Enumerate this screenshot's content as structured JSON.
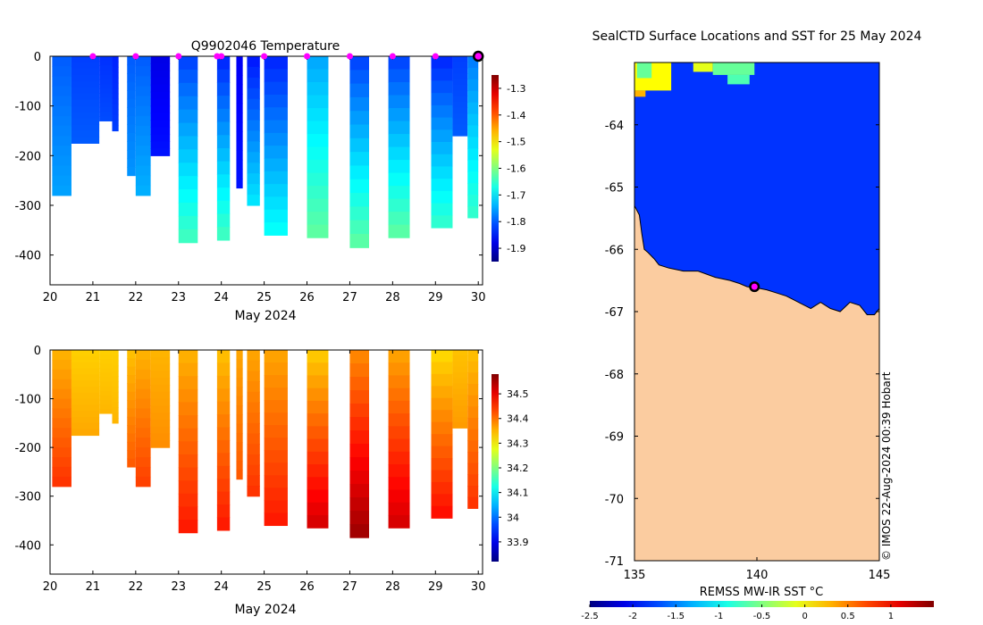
{
  "chart_data": [
    {
      "type": "heatmap",
      "id": "temperature",
      "title": "Q9902046  Temperature",
      "xlabel": "May 2024",
      "ylabel": "",
      "xlim": [
        20,
        30.1
      ],
      "ylim": [
        -460,
        0
      ],
      "x_ticks": [
        20,
        21,
        22,
        23,
        24,
        25,
        26,
        27,
        28,
        29,
        30
      ],
      "y_ticks": [
        0,
        -100,
        -200,
        -300,
        -400
      ],
      "colorbar": {
        "ticks": [
          -1.3,
          -1.4,
          -1.5,
          -1.6,
          -1.7,
          -1.8,
          -1.9
        ],
        "range": [
          -1.95,
          -1.25
        ]
      },
      "surface_markers_x": [
        21,
        22,
        23,
        23.9,
        24,
        25,
        26,
        27,
        28,
        29
      ],
      "latest_profile_x": 30,
      "profiles": [
        {
          "x0": 20.05,
          "x1": 20.5,
          "depth": 280,
          "top": -1.8,
          "bottom": -1.75
        },
        {
          "x0": 20.5,
          "x1": 21.15,
          "depth": 175,
          "top": -1.82,
          "bottom": -1.8
        },
        {
          "x0": 21.15,
          "x1": 21.45,
          "depth": 130,
          "top": -1.83,
          "bottom": -1.81
        },
        {
          "x0": 21.45,
          "x1": 21.6,
          "depth": 150,
          "top": -1.84,
          "bottom": -1.82
        },
        {
          "x0": 21.8,
          "x1": 22.0,
          "depth": 240,
          "top": -1.8,
          "bottom": -1.76
        },
        {
          "x0": 22.0,
          "x1": 22.35,
          "depth": 280,
          "top": -1.8,
          "bottom": -1.74
        },
        {
          "x0": 22.35,
          "x1": 22.8,
          "depth": 200,
          "top": -1.88,
          "bottom": -1.85
        },
        {
          "x0": 23.0,
          "x1": 23.45,
          "depth": 375,
          "top": -1.82,
          "bottom": -1.64
        },
        {
          "x0": 23.9,
          "x1": 24.2,
          "depth": 370,
          "top": -1.84,
          "bottom": -1.64
        },
        {
          "x0": 24.35,
          "x1": 24.5,
          "depth": 265,
          "top": -1.87,
          "bottom": -1.85
        },
        {
          "x0": 24.6,
          "x1": 24.9,
          "depth": 300,
          "top": -1.85,
          "bottom": -1.7
        },
        {
          "x0": 25.0,
          "x1": 25.55,
          "depth": 360,
          "top": -1.84,
          "bottom": -1.68
        },
        {
          "x0": 26.0,
          "x1": 26.5,
          "depth": 365,
          "top": -1.75,
          "bottom": -1.62
        },
        {
          "x0": 27.0,
          "x1": 27.45,
          "depth": 385,
          "top": -1.82,
          "bottom": -1.62
        },
        {
          "x0": 27.9,
          "x1": 28.4,
          "depth": 365,
          "top": -1.82,
          "bottom": -1.62
        },
        {
          "x0": 28.9,
          "x1": 29.4,
          "depth": 345,
          "top": -1.84,
          "bottom": -1.65
        },
        {
          "x0": 29.4,
          "x1": 29.75,
          "depth": 160,
          "top": -1.82,
          "bottom": -1.8
        },
        {
          "x0": 29.75,
          "x1": 30.0,
          "depth": 325,
          "top": -1.78,
          "bottom": -1.65
        }
      ]
    },
    {
      "type": "heatmap",
      "id": "salinity",
      "title": "",
      "xlabel": "May 2024",
      "ylabel": "",
      "xlim": [
        20,
        30.1
      ],
      "ylim": [
        -460,
        0
      ],
      "x_ticks": [
        20,
        21,
        22,
        23,
        24,
        25,
        26,
        27,
        28,
        29,
        30
      ],
      "y_ticks": [
        0,
        -100,
        -200,
        -300,
        -400
      ],
      "colorbar": {
        "ticks": [
          34.5,
          34.4,
          34.3,
          34.2,
          34.1,
          34,
          33.9
        ],
        "range": [
          33.82,
          34.58
        ]
      },
      "profiles": [
        {
          "x0": 20.05,
          "x1": 20.5,
          "depth": 280,
          "top": 34.35,
          "bottom": 34.45
        },
        {
          "x0": 20.5,
          "x1": 21.15,
          "depth": 175,
          "top": 34.33,
          "bottom": 34.36
        },
        {
          "x0": 21.15,
          "x1": 21.45,
          "depth": 130,
          "top": 34.33,
          "bottom": 34.35
        },
        {
          "x0": 21.45,
          "x1": 21.6,
          "depth": 150,
          "top": 34.33,
          "bottom": 34.35
        },
        {
          "x0": 21.8,
          "x1": 22.0,
          "depth": 240,
          "top": 34.34,
          "bottom": 34.42
        },
        {
          "x0": 22.0,
          "x1": 22.35,
          "depth": 280,
          "top": 34.35,
          "bottom": 34.44
        },
        {
          "x0": 22.35,
          "x1": 22.8,
          "depth": 200,
          "top": 34.35,
          "bottom": 34.38
        },
        {
          "x0": 23.0,
          "x1": 23.45,
          "depth": 375,
          "top": 34.35,
          "bottom": 34.47
        },
        {
          "x0": 23.9,
          "x1": 24.2,
          "depth": 370,
          "top": 34.34,
          "bottom": 34.47
        },
        {
          "x0": 24.35,
          "x1": 24.5,
          "depth": 265,
          "top": 34.36,
          "bottom": 34.42
        },
        {
          "x0": 24.6,
          "x1": 24.9,
          "depth": 300,
          "top": 34.36,
          "bottom": 34.45
        },
        {
          "x0": 25.0,
          "x1": 25.55,
          "depth": 360,
          "top": 34.36,
          "bottom": 34.47
        },
        {
          "x0": 26.0,
          "x1": 26.5,
          "depth": 365,
          "top": 34.33,
          "bottom": 34.52
        },
        {
          "x0": 27.0,
          "x1": 27.45,
          "depth": 385,
          "top": 34.38,
          "bottom": 34.56
        },
        {
          "x0": 27.9,
          "x1": 28.4,
          "depth": 365,
          "top": 34.36,
          "bottom": 34.52
        },
        {
          "x0": 28.9,
          "x1": 29.4,
          "depth": 345,
          "top": 34.32,
          "bottom": 34.48
        },
        {
          "x0": 29.4,
          "x1": 29.75,
          "depth": 160,
          "top": 34.34,
          "bottom": 34.37
        },
        {
          "x0": 29.75,
          "x1": 30.0,
          "depth": 325,
          "top": 34.34,
          "bottom": 34.45
        }
      ]
    },
    {
      "type": "heatmap",
      "id": "sst-map",
      "title": "SealCTD Surface Locations and SST for 25 May 2024",
      "xlim": [
        135,
        145
      ],
      "ylim": [
        -71,
        -63
      ],
      "x_ticks": [
        135,
        140,
        145
      ],
      "y_ticks": [
        -64,
        -65,
        -66,
        -67,
        -68,
        -69,
        -70,
        -71
      ],
      "colorbar": {
        "label": "REMSS MW-IR SST °C",
        "ticks": [
          -2.5,
          -2,
          -1.5,
          -1,
          -0.5,
          0,
          0.5,
          1
        ],
        "tick_labels": [
          "-2.5",
          "-2",
          "-1.5",
          "-1",
          "-0.5",
          "0",
          "0.5",
          "1"
        ],
        "range": [
          -2.5,
          1.5
        ]
      },
      "credit": "© IMOS 22-Aug-2024 00:39 Hobart",
      "ocean_sst": -1.8,
      "warm_patches": [
        {
          "lon0": 135.0,
          "lon1": 136.5,
          "lat0": -63.45,
          "lat1": -63.0,
          "sst": 0.0
        },
        {
          "lon0": 135.0,
          "lon1": 135.45,
          "lat0": -63.55,
          "lat1": -63.45,
          "sst": 0.3
        },
        {
          "lon0": 135.1,
          "lon1": 135.7,
          "lat0": -63.25,
          "lat1": -63.0,
          "sst": -0.6
        },
        {
          "lon0": 137.4,
          "lon1": 138.2,
          "lat0": -63.15,
          "lat1": -63.0,
          "sst": -0.1
        },
        {
          "lon0": 138.2,
          "lon1": 139.9,
          "lat0": -63.2,
          "lat1": -63.0,
          "sst": -0.6
        },
        {
          "lon0": 138.8,
          "lon1": 139.7,
          "lat0": -63.35,
          "lat1": -63.2,
          "sst": -0.7
        }
      ],
      "coastline": [
        [
          135,
          -65.3
        ],
        [
          135.2,
          -65.45
        ],
        [
          135.3,
          -65.75
        ],
        [
          135.4,
          -66.0
        ],
        [
          135.55,
          -66.05
        ],
        [
          135.8,
          -66.15
        ],
        [
          136.0,
          -66.25
        ],
        [
          136.4,
          -66.3
        ],
        [
          137.0,
          -66.35
        ],
        [
          137.6,
          -66.35
        ],
        [
          138.3,
          -66.45
        ],
        [
          138.9,
          -66.5
        ],
        [
          139.3,
          -66.55
        ],
        [
          139.6,
          -66.6
        ],
        [
          140.0,
          -66.62
        ],
        [
          140.4,
          -66.65
        ],
        [
          140.8,
          -66.7
        ],
        [
          141.2,
          -66.75
        ],
        [
          141.7,
          -66.85
        ],
        [
          142.2,
          -66.95
        ],
        [
          142.6,
          -66.85
        ],
        [
          143.0,
          -66.95
        ],
        [
          143.4,
          -67.0
        ],
        [
          143.8,
          -66.85
        ],
        [
          144.2,
          -66.9
        ],
        [
          144.5,
          -67.05
        ],
        [
          144.8,
          -67.05
        ],
        [
          145.0,
          -66.95
        ]
      ],
      "seal_location": [
        139.9,
        -66.6
      ]
    }
  ]
}
